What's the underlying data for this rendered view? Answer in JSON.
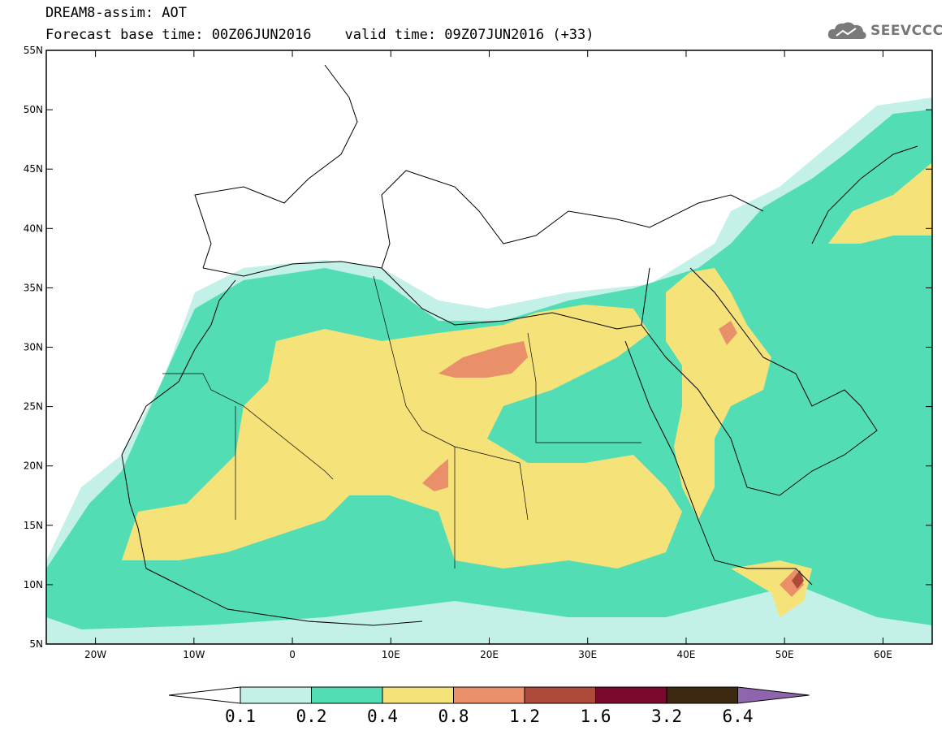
{
  "header": {
    "title": "DREAM8-assim: AOT",
    "base_time_label": "Forecast base time: 00Z06JUN2016",
    "valid_time_label": "valid time: 09Z07JUN2016 (+33)",
    "logo_text": "SEEVCCC"
  },
  "map": {
    "lon_range": [
      -25,
      65
    ],
    "lat_range": [
      5,
      55
    ],
    "lat_labels": [
      "55N",
      "50N",
      "45N",
      "40N",
      "35N",
      "30N",
      "25N",
      "20N",
      "15N",
      "10N",
      "5N"
    ],
    "lon_labels": [
      "20W",
      "10W",
      "0",
      "10E",
      "20E",
      "30E",
      "40E",
      "50E",
      "60E"
    ],
    "field": "Aerosol optical thickness"
  },
  "colorbar": {
    "labels": [
      "0.1",
      "0.2",
      "0.4",
      "0.8",
      "1.2",
      "1.6",
      "3.2",
      "6.4"
    ],
    "colors": [
      "#ffffff",
      "#c3f1e8",
      "#53ddb5",
      "#f5e37a",
      "#e9906a",
      "#ad4a3a",
      "#7a0a2c",
      "#3d2812",
      "#8f66ad"
    ]
  },
  "icons": {
    "logo": "cloud-icon"
  }
}
